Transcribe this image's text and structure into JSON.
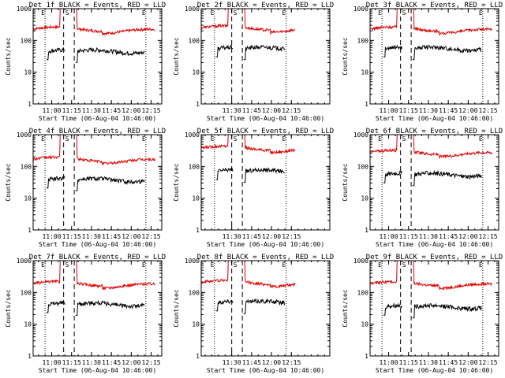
{
  "chart_data": [
    {
      "type": "line",
      "title": "Det 1f BLACK = Events, RED = LLD",
      "xlabel": "Start Time (06-Aug-04 10:46:00)",
      "ylabel": "Counts/sec",
      "yscale": "log",
      "ylim": [
        1,
        1000
      ],
      "xtick_labels": [
        "11:00",
        "11:15",
        "11:30",
        "11:45",
        "12:00",
        "12:15"
      ],
      "ytick_labels": [
        "1",
        "10",
        "100",
        "1000"
      ],
      "markers": [
        "E",
        "S",
        "E"
      ],
      "series": [
        {
          "name": "Events",
          "color": "#000000",
          "start_time": "10:56",
          "break": [
            "11:10",
            "11:18"
          ],
          "end_time": "12:10",
          "level": 45
        },
        {
          "name": "LLD",
          "color": "#e00000",
          "start_time": "10:46",
          "end_time": "12:18",
          "level": 230
        }
      ]
    },
    {
      "type": "line",
      "title": "Det 2f BLACK = Events, RED = LLD",
      "xlabel": "Start Time (06-Aug-04 10:46:00)",
      "ylabel": "Counts/sec",
      "yscale": "log",
      "ylim": [
        1,
        1000
      ],
      "xtick_labels": [
        "11:30",
        "11:45",
        "12:00",
        "12:15"
      ],
      "ytick_labels": [
        "1",
        "10",
        "100",
        "1000"
      ],
      "markers": [
        "E",
        "S",
        "E"
      ],
      "series": [
        {
          "name": "Events",
          "color": "#000000",
          "start_time": "11:18",
          "break": [
            "11:31",
            "11:39"
          ],
          "end_time": "12:10",
          "level": 55
        },
        {
          "name": "LLD",
          "color": "#e00000",
          "start_time": "11:07",
          "end_time": "12:18",
          "level": 250
        }
      ]
    },
    {
      "type": "line",
      "title": "Det 3f BLACK = Events, RED = LLD",
      "xlabel": "Start Time (06-Aug-04 10:46:00)",
      "ylabel": "Counts/sec",
      "yscale": "log",
      "ylim": [
        1,
        1000
      ],
      "xtick_labels": [
        "11:00",
        "11:15",
        "11:30",
        "11:45",
        "12:00",
        "12:15"
      ],
      "ytick_labels": [
        "1",
        "10",
        "100",
        "1000"
      ],
      "markers": [
        "E",
        "S",
        "E"
      ],
      "series": [
        {
          "name": "Events",
          "color": "#000000",
          "start_time": "10:56",
          "break": [
            "11:10",
            "11:18"
          ],
          "end_time": "12:10",
          "level": 55
        },
        {
          "name": "LLD",
          "color": "#e00000",
          "start_time": "10:46",
          "end_time": "12:18",
          "level": 230
        }
      ]
    },
    {
      "type": "line",
      "title": "Det 4f BLACK = Events, RED = LLD",
      "xlabel": "Start Time (06-Aug-04 10:46:00)",
      "ylabel": "Counts/sec",
      "yscale": "log",
      "ylim": [
        1,
        1000
      ],
      "xtick_labels": [
        "11:00",
        "11:15",
        "11:30",
        "11:45",
        "12:00",
        "12:15"
      ],
      "ytick_labels": [
        "1",
        "10",
        "100",
        "1000"
      ],
      "markers": [
        "E",
        "S",
        "E"
      ],
      "series": [
        {
          "name": "Events",
          "color": "#000000",
          "start_time": "10:56",
          "break": [
            "11:10",
            "11:18"
          ],
          "end_time": "12:10",
          "level": 38
        },
        {
          "name": "LLD",
          "color": "#e00000",
          "start_time": "10:46",
          "end_time": "12:18",
          "level": 170
        }
      ]
    },
    {
      "type": "line",
      "title": "Det 5f BLACK = Events, RED = LLD",
      "xlabel": "Start Time (06-Aug-04 10:46:00)",
      "ylabel": "Counts/sec",
      "yscale": "log",
      "ylim": [
        1,
        1000
      ],
      "xtick_labels": [
        "11:30",
        "11:45",
        "12:00",
        "12:15"
      ],
      "ytick_labels": [
        "1",
        "10",
        "100",
        "1000"
      ],
      "markers": [
        "E",
        "S",
        "E"
      ],
      "series": [
        {
          "name": "Events",
          "color": "#000000",
          "start_time": "11:18",
          "break": [
            "11:31",
            "11:39"
          ],
          "end_time": "12:10",
          "level": 70
        },
        {
          "name": "LLD",
          "color": "#e00000",
          "start_time": "11:07",
          "end_time": "12:18",
          "level": 380
        }
      ]
    },
    {
      "type": "line",
      "title": "Det 6f BLACK = Events, RED = LLD",
      "xlabel": "Start Time (06-Aug-04 10:46:00)",
      "ylabel": "Counts/sec",
      "yscale": "log",
      "ylim": [
        1,
        1000
      ],
      "xtick_labels": [
        "11:00",
        "11:15",
        "11:30",
        "11:45",
        "12:00",
        "12:15"
      ],
      "ytick_labels": [
        "1",
        "10",
        "100",
        "1000"
      ],
      "markers": [
        "E",
        "S",
        "E"
      ],
      "series": [
        {
          "name": "Events",
          "color": "#000000",
          "start_time": "10:56",
          "break": [
            "11:10",
            "11:18"
          ],
          "end_time": "12:10",
          "level": 55
        },
        {
          "name": "LLD",
          "color": "#e00000",
          "start_time": "10:46",
          "end_time": "12:18",
          "level": 280
        }
      ]
    },
    {
      "type": "line",
      "title": "Det 7f BLACK = Events, RED = LLD",
      "xlabel": "Start Time (06-Aug-04 10:46:00)",
      "ylabel": "Counts/sec",
      "yscale": "log",
      "ylim": [
        1,
        1000
      ],
      "xtick_labels": [
        "11:00",
        "11:15",
        "11:30",
        "11:45",
        "12:00",
        "12:15"
      ],
      "ytick_labels": [
        "1",
        "10",
        "100",
        "1000"
      ],
      "markers": [
        "E",
        "S",
        "E"
      ],
      "series": [
        {
          "name": "Events",
          "color": "#000000",
          "start_time": "10:56",
          "break": [
            "11:10",
            "11:18"
          ],
          "end_time": "12:10",
          "level": 42
        },
        {
          "name": "LLD",
          "color": "#e00000",
          "start_time": "10:46",
          "end_time": "12:18",
          "level": 190
        }
      ]
    },
    {
      "type": "line",
      "title": "Det 8f BLACK = Events, RED = LLD",
      "xlabel": "Start Time (06-Aug-04 10:46:00)",
      "ylabel": "Counts/sec",
      "yscale": "log",
      "ylim": [
        1,
        1000
      ],
      "xtick_labels": [
        "11:30",
        "11:45",
        "12:00",
        "12:15"
      ],
      "ytick_labels": [
        "1",
        "10",
        "100",
        "1000"
      ],
      "markers": [
        "E",
        "S",
        "E"
      ],
      "series": [
        {
          "name": "Events",
          "color": "#000000",
          "start_time": "11:18",
          "break": [
            "11:31",
            "11:39"
          ],
          "end_time": "12:10",
          "level": 48
        },
        {
          "name": "LLD",
          "color": "#e00000",
          "start_time": "11:07",
          "end_time": "12:18",
          "level": 210
        }
      ]
    },
    {
      "type": "line",
      "title": "Det 9f BLACK = Events, RED = LLD",
      "xlabel": "Start Time (06-Aug-04 10:46:00)",
      "ylabel": "Counts/sec",
      "yscale": "log",
      "ylim": [
        1,
        1000
      ],
      "xtick_labels": [
        "11:00",
        "11:15",
        "11:30",
        "11:45",
        "12:00",
        "12:15"
      ],
      "ytick_labels": [
        "1",
        "10",
        "100",
        "1000"
      ],
      "markers": [
        "E",
        "S",
        "E"
      ],
      "series": [
        {
          "name": "Events",
          "color": "#000000",
          "start_time": "10:56",
          "break": [
            "11:10",
            "11:18"
          ],
          "end_time": "12:10",
          "level": 35
        },
        {
          "name": "LLD",
          "color": "#e00000",
          "start_time": "10:46",
          "end_time": "12:18",
          "level": 190
        }
      ]
    }
  ]
}
